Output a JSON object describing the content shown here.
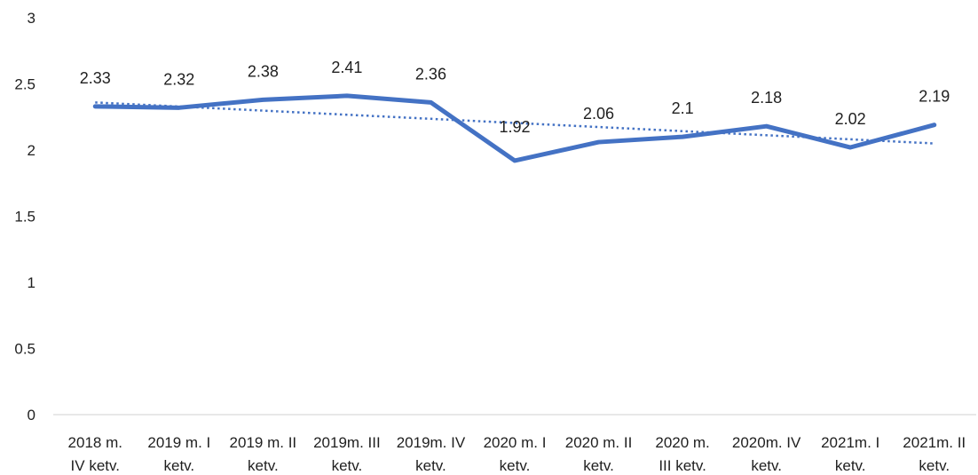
{
  "chart_data": {
    "type": "line",
    "title": "",
    "xlabel": "",
    "ylabel": "",
    "ylim": [
      0,
      3
    ],
    "y_ticks": [
      "0",
      "0.5",
      "1",
      "1.5",
      "2",
      "2.5",
      "3"
    ],
    "grid": false,
    "legend": "none",
    "categories": [
      [
        "2018 m.",
        "IV ketv."
      ],
      [
        "2019 m. I",
        "ketv."
      ],
      [
        "2019 m. II",
        "ketv."
      ],
      [
        "2019m. III",
        "ketv."
      ],
      [
        "2019m. IV",
        "ketv."
      ],
      [
        "2020 m. I",
        "ketv."
      ],
      [
        "2020 m. II",
        "ketv."
      ],
      [
        "2020 m.",
        "III ketv."
      ],
      [
        "2020m. IV",
        "ketv."
      ],
      [
        "2021m. I",
        "ketv."
      ],
      [
        "2021m. II",
        "ketv."
      ]
    ],
    "series": [
      {
        "values": [
          2.33,
          2.32,
          2.38,
          2.41,
          2.36,
          1.92,
          2.06,
          2.1,
          2.18,
          2.02,
          2.19
        ],
        "data_labels": [
          "2.33",
          "2.32",
          "2.38",
          "2.41",
          "2.36",
          "1.92",
          "2.06",
          "2.1",
          "2.18",
          "2.02",
          "2.19"
        ],
        "color": "#4472c4"
      }
    ],
    "trendline": {
      "type": "linear",
      "style": "dotted",
      "color": "#4472c4",
      "start": 2.36,
      "end": 2.05
    }
  }
}
